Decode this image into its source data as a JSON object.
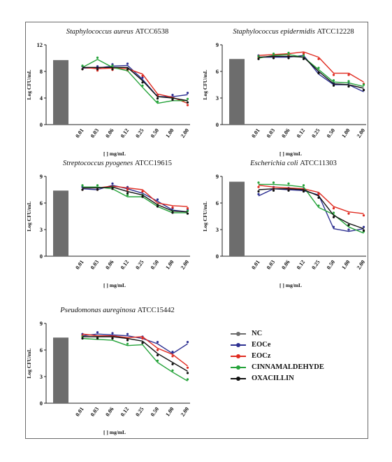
{
  "chart_data": [
    {
      "type": "line",
      "title": "Staphylococcus aureus ATCC6538",
      "title_species": "Staphylococcus aureus",
      "title_strain": "ATCC6538",
      "ylabel": "Log CFU/mL",
      "xlabel": "[ ] mg/mL",
      "categories": [
        "0.01",
        "0.03",
        "0.06",
        "0.12",
        "0.25",
        "0.50",
        "1.00",
        "2.00"
      ],
      "ylim": [
        0,
        12
      ],
      "yticks": [
        0,
        4,
        8,
        12
      ],
      "nc_value": 9.7,
      "series": [
        {
          "name": "EOCe",
          "values": [
            8.5,
            8.5,
            8.8,
            8.9,
            6.8,
            4.2,
            4.2,
            4.5
          ]
        },
        {
          "name": "EOCz",
          "values": [
            8.6,
            8.4,
            8.5,
            8.4,
            7.6,
            4.6,
            4.1,
            3.2
          ]
        },
        {
          "name": "CINNAMALDEHYDE",
          "values": [
            8.6,
            9.8,
            8.6,
            8.1,
            5.6,
            3.2,
            3.6,
            3.6
          ]
        },
        {
          "name": "OXACILLIN",
          "values": [
            8.6,
            8.6,
            8.6,
            8.6,
            6.6,
            4.2,
            4.0,
            3.6
          ]
        }
      ]
    },
    {
      "type": "line",
      "title": "Staphylococcus epidermidis ATCC12228",
      "title_species": "Staphylococcus epidermidis",
      "title_strain": "ATCC12228",
      "ylabel": "Log CFU/mL",
      "xlabel": "[ ] mg/mL",
      "categories": [
        "0.01",
        "0.03",
        "0.06",
        "0.12",
        "0.25",
        "0.50",
        "1.00",
        "2.00"
      ],
      "ylim": [
        0,
        9
      ],
      "yticks": [
        0,
        3,
        6,
        9
      ],
      "nc_value": 7.4,
      "series": [
        {
          "name": "EOCe",
          "values": [
            7.6,
            7.6,
            7.6,
            7.8,
            5.7,
            4.5,
            4.5,
            3.7
          ]
        },
        {
          "name": "EOCz",
          "values": [
            7.8,
            7.9,
            8.0,
            8.2,
            7.6,
            5.8,
            5.8,
            4.8
          ]
        },
        {
          "name": "CINNAMALDEHYDE",
          "values": [
            7.5,
            7.8,
            7.9,
            7.6,
            6.2,
            4.8,
            4.7,
            4.3
          ]
        },
        {
          "name": "OXACILLIN",
          "values": [
            7.6,
            7.7,
            7.7,
            7.6,
            6.0,
            4.6,
            4.5,
            4.1
          ]
        }
      ]
    },
    {
      "type": "line",
      "title": "Streptococcus pyogenes ATCC19615",
      "title_species": "Streptococcus pyogenes",
      "title_strain": "ATCC19615",
      "ylabel": "Log CFU/mL",
      "xlabel": "[ ] mg/mL",
      "categories": [
        "0.01",
        "0.03",
        "0.06",
        "0.12",
        "0.25",
        "0.50",
        "1.00",
        "2.00"
      ],
      "ylim": [
        0,
        9
      ],
      "yticks": [
        0,
        3,
        6,
        9
      ],
      "nc_value": 7.4,
      "series": [
        {
          "name": "EOCe",
          "values": [
            7.6,
            7.5,
            8.0,
            7.6,
            7.1,
            6.2,
            5.2,
            5.0
          ]
        },
        {
          "name": "EOCz",
          "values": [
            7.7,
            7.7,
            7.9,
            7.7,
            7.5,
            6.0,
            5.7,
            5.6
          ]
        },
        {
          "name": "CINNAMALDEHYDE",
          "values": [
            7.8,
            7.8,
            7.6,
            6.7,
            6.7,
            5.6,
            4.9,
            4.9
          ]
        },
        {
          "name": "OXACILLIN",
          "values": [
            7.7,
            7.7,
            7.8,
            7.3,
            6.9,
            5.8,
            5.1,
            5.0
          ]
        }
      ]
    },
    {
      "type": "line",
      "title": "Escherichia coli ATCC11303",
      "title_species": "Escherichia coli",
      "title_strain": "ATCC11303",
      "ylabel": "Log CFU/mL",
      "xlabel": "[ ] mg/mL",
      "categories": [
        "0.01",
        "0.03",
        "0.06",
        "0.12",
        "0.25",
        "0.50",
        "1.00",
        "2.00"
      ],
      "ylim": [
        0,
        9
      ],
      "yticks": [
        0,
        3,
        6,
        9
      ],
      "nc_value": 8.4,
      "series": [
        {
          "name": "EOCe",
          "values": [
            6.8,
            7.6,
            7.5,
            7.4,
            6.9,
            3.1,
            2.8,
            3.1
          ]
        },
        {
          "name": "EOCz",
          "values": [
            8.0,
            7.8,
            7.7,
            7.6,
            7.2,
            5.6,
            5.0,
            4.8
          ]
        },
        {
          "name": "CINNAMALDEHYDE",
          "values": [
            8.1,
            8.1,
            8.0,
            7.8,
            5.5,
            4.7,
            3.3,
            2.6
          ]
        },
        {
          "name": "OXACILLIN",
          "values": [
            7.5,
            7.6,
            7.6,
            7.5,
            6.8,
            4.6,
            3.7,
            3.1
          ]
        }
      ]
    },
    {
      "type": "line",
      "title": "Pseudomonas aureginosa ATCC15442",
      "title_species": "Pseudomonas aureginosa",
      "title_strain": "ATCC15442",
      "ylabel": "Log CFU/mL",
      "xlabel": "[ ] mg/mL",
      "categories": [
        "0.01",
        "0.03",
        "0.06",
        "0.12",
        "0.25",
        "0.50",
        "1.00",
        "2.00"
      ],
      "ylim": [
        0,
        9
      ],
      "yticks": [
        0,
        3,
        6,
        9
      ],
      "nc_value": 7.4,
      "series": [
        {
          "name": "EOCe",
          "values": [
            7.6,
            7.8,
            7.7,
            7.6,
            7.3,
            6.7,
            5.6,
            6.7
          ]
        },
        {
          "name": "EOCz",
          "values": [
            7.8,
            7.6,
            7.6,
            7.4,
            7.5,
            6.2,
            5.5,
            4.2
          ]
        },
        {
          "name": "CINNAMALDEHYDE",
          "values": [
            7.3,
            7.2,
            7.1,
            6.5,
            6.6,
            4.6,
            3.5,
            2.5
          ]
        },
        {
          "name": "OXACILLIN",
          "values": [
            7.5,
            7.5,
            7.5,
            7.3,
            7.0,
            5.6,
            4.6,
            3.6
          ]
        }
      ]
    }
  ],
  "legend": {
    "placement": "bottom-right",
    "items": [
      {
        "name": "NC",
        "color": "#6d6d6d"
      },
      {
        "name": "EOCe",
        "color": "#2e3192"
      },
      {
        "name": "EOCz",
        "color": "#e02b20"
      },
      {
        "name": "CINNAMALDEHYDE",
        "color": "#25a33a"
      },
      {
        "name": "OXACILLIN",
        "color": "#111111"
      }
    ]
  },
  "colors": {
    "nc_bar": "#6d6d6d",
    "EOCe": "#2e3192",
    "EOCz": "#e02b20",
    "CINNAMALDEHYDE": "#25a33a",
    "OXACILLIN": "#111111"
  }
}
